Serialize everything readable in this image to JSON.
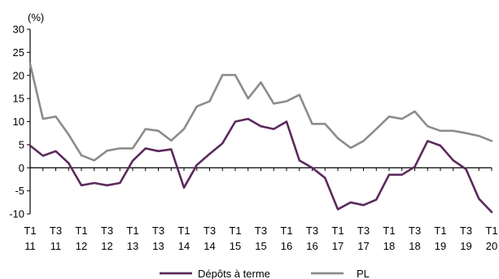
{
  "chart_data": {
    "type": "line",
    "y_unit": "(%)",
    "ylim": [
      -10,
      30
    ],
    "yticks": [
      30,
      25,
      20,
      15,
      10,
      5,
      0,
      -5,
      -10
    ],
    "x_tick_labels": [
      {
        "q": "T1",
        "y": "11"
      },
      {
        "q": "T3",
        "y": "11"
      },
      {
        "q": "T1",
        "y": "12"
      },
      {
        "q": "T3",
        "y": "12"
      },
      {
        "q": "T1",
        "y": "13"
      },
      {
        "q": "T3",
        "y": "13"
      },
      {
        "q": "T1",
        "y": "14"
      },
      {
        "q": "T3",
        "y": "14"
      },
      {
        "q": "T1",
        "y": "15"
      },
      {
        "q": "T3",
        "y": "15"
      },
      {
        "q": "T1",
        "y": "16"
      },
      {
        "q": "T3",
        "y": "16"
      },
      {
        "q": "T1",
        "y": "17"
      },
      {
        "q": "T3",
        "y": "17"
      },
      {
        "q": "T1",
        "y": "18"
      },
      {
        "q": "T3",
        "y": "18"
      },
      {
        "q": "T1",
        "y": "19"
      },
      {
        "q": "T3",
        "y": "19"
      },
      {
        "q": "T1",
        "y": "20"
      }
    ],
    "x_start": "2011-01",
    "x_end": "2020-01",
    "grid": false,
    "legend_position": "bottom",
    "series": [
      {
        "name": "Dépôts à terme",
        "color": "#5b2a5c",
        "values": [
          4.8,
          2.6,
          3.6,
          1.0,
          -3.8,
          -3.3,
          -3.8,
          -3.3,
          1.5,
          4.2,
          3.6,
          4.0,
          -4.3,
          0.6,
          3.0,
          5.3,
          10.0,
          10.6,
          9.0,
          8.4,
          10.0,
          1.6,
          0.0,
          -2.2,
          -9.0,
          -7.5,
          -8.1,
          -6.9,
          -1.5,
          -1.5,
          0.2,
          5.8,
          4.8,
          1.6,
          -0.3,
          -6.7,
          -9.6
        ]
      },
      {
        "name": "PL",
        "color": "#8c8c8c",
        "values": [
          22.5,
          10.6,
          11.1,
          7.2,
          2.7,
          1.6,
          3.7,
          4.2,
          4.2,
          8.4,
          8.0,
          5.9,
          8.4,
          13.3,
          14.4,
          20.1,
          20.1,
          15.0,
          18.5,
          13.9,
          14.4,
          15.8,
          9.5,
          9.5,
          6.4,
          4.3,
          5.8,
          8.4,
          11.1,
          10.6,
          12.2,
          9.0,
          8.0,
          8.0,
          7.5,
          6.9,
          5.8
        ]
      }
    ]
  }
}
